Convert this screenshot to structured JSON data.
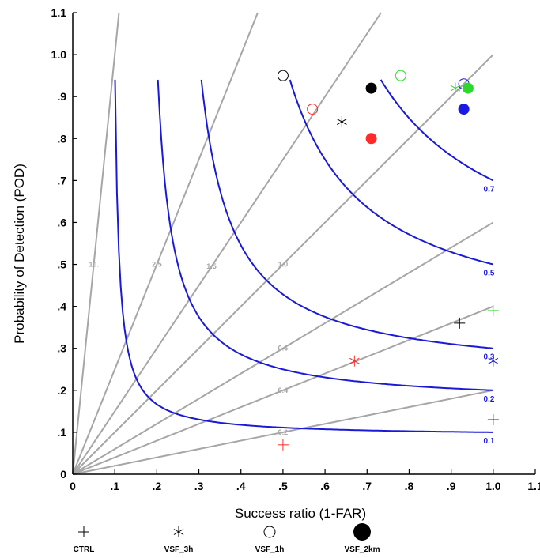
{
  "chart_data": {
    "type": "scatter",
    "title": "",
    "xlabel": "Success ratio (1-FAR)",
    "ylabel": "Probability of Detection (POD)",
    "xlim": [
      0,
      1.1
    ],
    "ylim": [
      0,
      1.1
    ],
    "xticks": [
      "0",
      ".1",
      ".2",
      ".3",
      ".4",
      ".5",
      ".6",
      ".7",
      ".8",
      ".9",
      "1.0",
      "1.1"
    ],
    "yticks": [
      "0",
      ".1",
      ".2",
      ".3",
      ".4",
      ".5",
      ".6",
      ".7",
      ".8",
      ".9",
      "1.0",
      "1.1"
    ],
    "bias_lines": {
      "values": [
        0.2,
        0.4,
        0.6,
        1.0,
        1.5,
        2.5,
        10.0
      ],
      "labels": [
        "0.2",
        "0.4",
        "0.6",
        "1.0",
        "1.5",
        "2.5",
        "10."
      ],
      "color": "#a6a6a6"
    },
    "csi_curves": {
      "values": [
        0.1,
        0.2,
        0.3,
        0.5,
        0.7
      ],
      "labels": [
        "0.1",
        "0.2",
        "0.3",
        "0.5",
        "0.7"
      ],
      "color": "#1a1ad6"
    },
    "legend": {
      "placement": "bottom",
      "entries": [
        {
          "label": "CTRL",
          "marker": "plus"
        },
        {
          "label": "VSF_3h",
          "marker": "asterisk"
        },
        {
          "label": "VSF_1h",
          "marker": "open-circle"
        },
        {
          "label": "VSF_2km",
          "marker": "filled-circle"
        }
      ]
    },
    "colors": {
      "black": "#000000",
      "red": "#ff2a2a",
      "green": "#2bd92b",
      "blue": "#1a1ae6"
    },
    "points": [
      {
        "series": "CTRL",
        "marker": "plus",
        "color": "red",
        "x": 0.5,
        "y": 0.07
      },
      {
        "series": "CTRL",
        "marker": "plus",
        "color": "black",
        "x": 0.92,
        "y": 0.36
      },
      {
        "series": "CTRL",
        "marker": "plus",
        "color": "green",
        "x": 1.0,
        "y": 0.39
      },
      {
        "series": "CTRL",
        "marker": "plus",
        "color": "blue",
        "x": 1.0,
        "y": 0.13
      },
      {
        "series": "VSF_3h",
        "marker": "asterisk",
        "color": "red",
        "x": 0.67,
        "y": 0.27
      },
      {
        "series": "VSF_3h",
        "marker": "asterisk",
        "color": "black",
        "x": 0.64,
        "y": 0.84
      },
      {
        "series": "VSF_3h",
        "marker": "asterisk",
        "color": "green",
        "x": 0.91,
        "y": 0.92
      },
      {
        "series": "VSF_3h",
        "marker": "asterisk",
        "color": "blue",
        "x": 1.0,
        "y": 0.27
      },
      {
        "series": "VSF_1h",
        "marker": "open-circle",
        "color": "black",
        "x": 0.5,
        "y": 0.95
      },
      {
        "series": "VSF_1h",
        "marker": "open-circle",
        "color": "red",
        "x": 0.57,
        "y": 0.87
      },
      {
        "series": "VSF_1h",
        "marker": "open-circle",
        "color": "green",
        "x": 0.78,
        "y": 0.95
      },
      {
        "series": "VSF_1h",
        "marker": "open-circle",
        "color": "blue",
        "x": 0.93,
        "y": 0.93
      },
      {
        "series": "VSF_2km",
        "marker": "filled-circle",
        "color": "black",
        "x": 0.71,
        "y": 0.92
      },
      {
        "series": "VSF_2km",
        "marker": "filled-circle",
        "color": "red",
        "x": 0.71,
        "y": 0.8
      },
      {
        "series": "VSF_2km",
        "marker": "filled-circle",
        "color": "green",
        "x": 0.94,
        "y": 0.92
      },
      {
        "series": "VSF_2km",
        "marker": "filled-circle",
        "color": "blue",
        "x": 0.93,
        "y": 0.87
      }
    ]
  }
}
